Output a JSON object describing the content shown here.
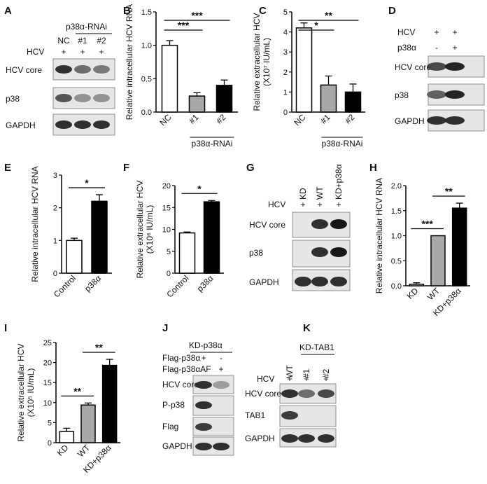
{
  "panels": {
    "A": {
      "letter": "A",
      "group": "p38α-RNAi",
      "hcv": "HCV",
      "lanes": [
        "NC",
        "#1",
        "#2"
      ],
      "plus": [
        "+",
        "+",
        "+"
      ],
      "rows": [
        "HCV core",
        "p38",
        "GAPDH"
      ]
    },
    "B": {
      "letter": "B"
    },
    "C": {
      "letter": "C"
    },
    "D": {
      "letter": "D",
      "hcv": "HCV",
      "p38a": "p38α",
      "hcv_signs": [
        "+",
        "+"
      ],
      "p38_signs": [
        "-",
        "+"
      ],
      "rows": [
        "HCV core",
        "p38",
        "GAPDH"
      ]
    },
    "E": {
      "letter": "E"
    },
    "F": {
      "letter": "F"
    },
    "G": {
      "letter": "G",
      "hcv": "HCV",
      "lanes": [
        "KD",
        "WT",
        "KD+p38α"
      ],
      "plus": [
        "+",
        "+",
        "+"
      ],
      "rows": [
        "HCV core",
        "p38",
        "GAPDH"
      ]
    },
    "H": {
      "letter": "H"
    },
    "I": {
      "letter": "I"
    },
    "J": {
      "letter": "J",
      "group": "KD-p38α",
      "cond1": "Flag-p38α",
      "cond2": "Flag-p38αAF",
      "cond1_signs": [
        "+",
        "-"
      ],
      "cond2_signs": [
        "-",
        "+"
      ],
      "rows": [
        "HCV core",
        "P-p38",
        "Flag",
        "GAPDH"
      ]
    },
    "K": {
      "letter": "K",
      "group": "KD-TAB1",
      "hcv": "HCV",
      "lanes": [
        "WT",
        "#1",
        "#2"
      ],
      "plus": [
        "+",
        "+",
        "+"
      ],
      "rows": [
        "HCV core",
        "TAB1",
        "GAPDH"
      ]
    }
  },
  "chart_data": [
    {
      "id": "B",
      "type": "bar",
      "categories": [
        "NC",
        "#1",
        "#2"
      ],
      "values": [
        1.0,
        0.24,
        0.4
      ],
      "errors": [
        0.07,
        0.05,
        0.08
      ],
      "fills": [
        "#ffffff",
        "#a8a8a8",
        "#000000"
      ],
      "ylabel": "Relative intracellular HCV RNA",
      "ylim": [
        0,
        1.5
      ],
      "ticks": [
        "0.0",
        "0.5",
        "1.0",
        "1.5"
      ],
      "tickvals": [
        0,
        0.5,
        1.0,
        1.5
      ],
      "group_label": "p38α-RNAi",
      "sig": [
        {
          "a": 0,
          "b": 2,
          "label": "***"
        },
        {
          "a": 0,
          "b": 1,
          "label": "***"
        }
      ]
    },
    {
      "id": "C",
      "type": "bar",
      "categories": [
        "NC",
        "#1",
        "#2"
      ],
      "values": [
        4.2,
        1.35,
        1.0
      ],
      "errors": [
        0.25,
        0.45,
        0.4
      ],
      "fills": [
        "#ffffff",
        "#a8a8a8",
        "#000000"
      ],
      "ylabel": "Relative extracellular HCV",
      "ylabel2": "(X10⁷ IU/mL)",
      "ylim": [
        0,
        5
      ],
      "ticks": [
        "0",
        "1",
        "2",
        "3",
        "4",
        "5"
      ],
      "tickvals": [
        0,
        1,
        2,
        3,
        4,
        5
      ],
      "group_label": "p38α-RNAi",
      "sig": [
        {
          "a": 0,
          "b": 2,
          "label": "**"
        },
        {
          "a": 0,
          "b": 1,
          "label": "*"
        }
      ]
    },
    {
      "id": "E",
      "type": "bar",
      "categories": [
        "Control",
        "p38α"
      ],
      "values": [
        1.0,
        2.2
      ],
      "errors": [
        0.07,
        0.2
      ],
      "fills": [
        "#ffffff",
        "#000000"
      ],
      "ylabel": "Relative intracellular HCV RNA",
      "ylim": [
        0,
        3
      ],
      "ticks": [
        "0",
        "1",
        "2",
        "3"
      ],
      "tickvals": [
        0,
        1,
        2,
        3
      ],
      "sig": [
        {
          "a": 0,
          "b": 1,
          "label": "*"
        }
      ]
    },
    {
      "id": "F",
      "type": "bar",
      "categories": [
        "Control",
        "p38α"
      ],
      "values": [
        9.2,
        16.3
      ],
      "errors": [
        0.2,
        0.3
      ],
      "fills": [
        "#ffffff",
        "#000000"
      ],
      "ylabel": "Relative extracellular HCV",
      "ylabel2": "(X10⁶ IU/mL)",
      "ylim": [
        0,
        20
      ],
      "ticks": [
        "0",
        "5",
        "10",
        "15",
        "20"
      ],
      "tickvals": [
        0,
        5,
        10,
        15,
        20
      ],
      "sig": [
        {
          "a": 0,
          "b": 1,
          "label": "*"
        }
      ]
    },
    {
      "id": "H",
      "type": "bar",
      "categories": [
        "KD",
        "WT",
        "KD+p38α"
      ],
      "values": [
        0.03,
        1.0,
        1.55
      ],
      "errors": [
        0.03,
        0.0,
        0.1
      ],
      "fills": [
        "#ffffff",
        "#a8a8a8",
        "#000000"
      ],
      "ylabel": "Relative intracellular HCV RNA",
      "ylim": [
        0,
        2.0
      ],
      "ticks": [
        "0.0",
        "0.5",
        "1.0",
        "1.5",
        "2.0"
      ],
      "tickvals": [
        0,
        0.5,
        1.0,
        1.5,
        2.0
      ],
      "sig": [
        {
          "a": 0,
          "b": 1,
          "label": "***"
        },
        {
          "a": 1,
          "b": 2,
          "label": "**"
        }
      ]
    },
    {
      "id": "I",
      "type": "bar",
      "categories": [
        "KD",
        "WT",
        "KD+p38α"
      ],
      "values": [
        2.8,
        9.4,
        19.3
      ],
      "errors": [
        0.8,
        0.5,
        1.5
      ],
      "fills": [
        "#ffffff",
        "#a8a8a8",
        "#000000"
      ],
      "ylabel": "Relative extracellular HCV",
      "ylabel2": "(X10⁵ IU/mL)",
      "ylim": [
        0,
        25
      ],
      "ticks": [
        "0",
        "5",
        "10",
        "15",
        "20",
        "25"
      ],
      "tickvals": [
        0,
        5,
        10,
        15,
        20,
        25
      ],
      "sig": [
        {
          "a": 0,
          "b": 1,
          "label": "**"
        },
        {
          "a": 1,
          "b": 2,
          "label": "**"
        }
      ]
    }
  ]
}
